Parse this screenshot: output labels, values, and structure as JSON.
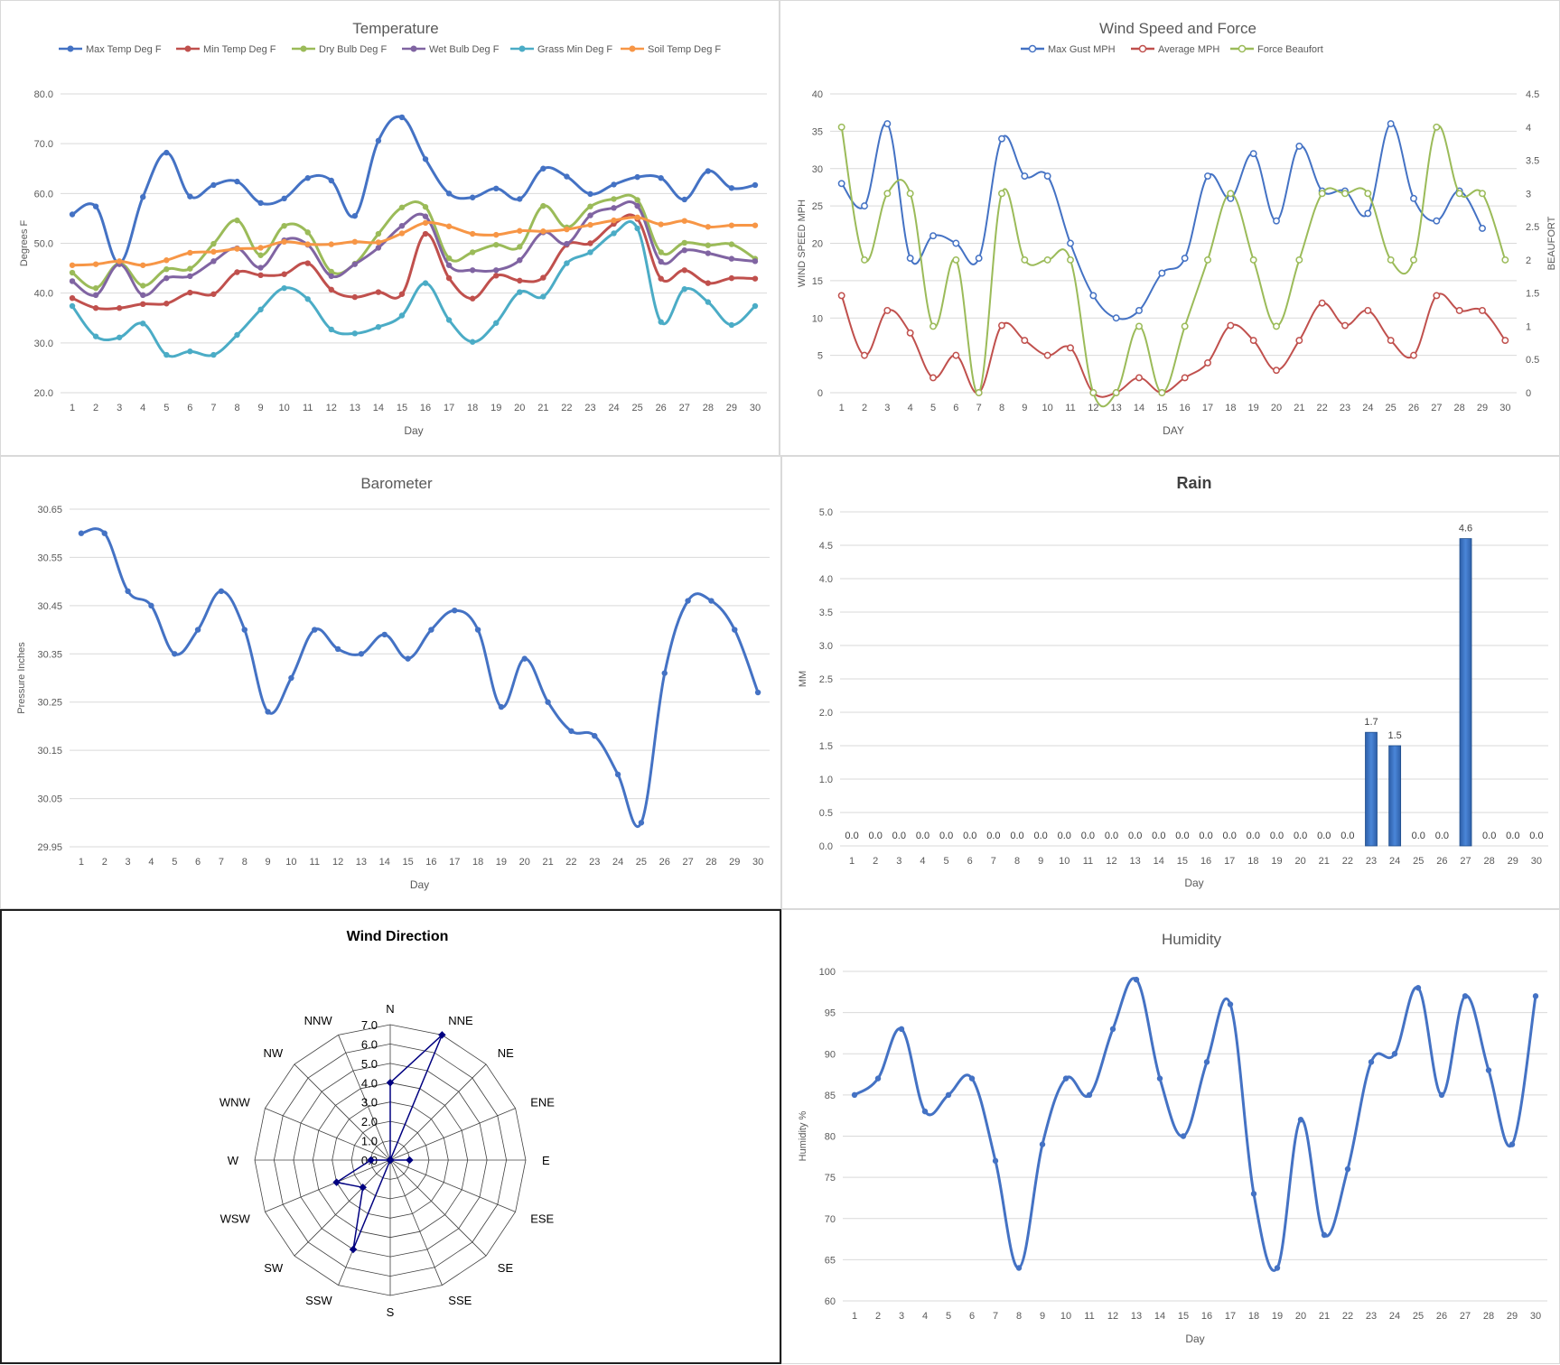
{
  "chart_data": [
    {
      "id": "temperature",
      "type": "line",
      "title": "Temperature",
      "xlabel": "Day",
      "ylabel": "Degrees F",
      "ylim": [
        20,
        80
      ],
      "yticks": [
        "20.0",
        "30.0",
        "40.0",
        "50.0",
        "60.0",
        "70.0",
        "80.0"
      ],
      "x": [
        1,
        2,
        3,
        4,
        5,
        6,
        7,
        8,
        9,
        10,
        11,
        12,
        13,
        14,
        15,
        16,
        17,
        18,
        19,
        20,
        21,
        22,
        23,
        24,
        25,
        26,
        27,
        28,
        29,
        30
      ],
      "legend_position": "top",
      "grid": true,
      "series": [
        {
          "name": "Max Temp Deg F",
          "color": "#4472c4",
          "values": [
            55.8,
            57.4,
            46.0,
            59.3,
            68.2,
            59.4,
            61.7,
            62.4,
            58.1,
            59.0,
            63.1,
            62.6,
            55.5,
            70.6,
            75.3,
            66.9,
            60.0,
            59.2,
            61.0,
            58.9,
            65.0,
            63.4,
            59.9,
            61.8,
            63.3,
            63.1,
            58.8,
            64.5,
            61.1,
            61.7
          ]
        },
        {
          "name": "Min Temp Deg F",
          "color": "#c0504d",
          "values": [
            39.0,
            37.0,
            37.0,
            37.8,
            37.9,
            40.1,
            39.8,
            44.2,
            43.6,
            43.8,
            46.0,
            40.7,
            39.2,
            40.2,
            39.8,
            51.9,
            43.0,
            38.9,
            43.5,
            42.5,
            43.1,
            49.7,
            50.0,
            53.9,
            54.9,
            42.9,
            44.6,
            42.0,
            43.0,
            42.9
          ]
        },
        {
          "name": "Dry Bulb Deg F",
          "color": "#9bbb59",
          "values": [
            44.1,
            41.0,
            46.0,
            41.5,
            44.8,
            44.9,
            49.9,
            54.6,
            47.6,
            53.5,
            52.2,
            44.3,
            45.9,
            51.9,
            57.2,
            57.3,
            47.0,
            48.2,
            49.7,
            49.3,
            57.5,
            53.2,
            57.4,
            58.9,
            58.7,
            48.2,
            50.1,
            49.6,
            49.8,
            46.9
          ]
        },
        {
          "name": "Wet Bulb Deg F",
          "color": "#8064a2",
          "values": [
            42.4,
            39.6,
            45.8,
            39.6,
            43.0,
            43.4,
            46.4,
            49.0,
            45.1,
            50.6,
            49.7,
            43.4,
            45.8,
            49.1,
            53.5,
            55.4,
            45.6,
            44.6,
            44.6,
            46.6,
            52.2,
            49.9,
            55.6,
            57.1,
            57.5,
            46.3,
            48.6,
            48.0,
            46.9,
            46.4
          ]
        },
        {
          "name": "Grass Min Deg F",
          "color": "#4bacc6",
          "values": [
            37.4,
            31.3,
            31.1,
            33.9,
            27.6,
            28.3,
            27.6,
            31.6,
            36.7,
            41.0,
            38.8,
            32.7,
            31.9,
            33.2,
            35.5,
            42.0,
            34.6,
            30.2,
            34.0,
            40.2,
            39.3,
            46.0,
            48.2,
            52.0,
            53.0,
            34.2,
            40.8,
            38.2,
            33.6,
            37.4
          ]
        },
        {
          "name": "Soil Temp Deg F",
          "color": "#f79646",
          "values": [
            45.6,
            45.8,
            46.4,
            45.6,
            46.6,
            48.1,
            48.3,
            48.9,
            49.1,
            50.3,
            49.8,
            49.8,
            50.3,
            50.2,
            52.0,
            54.1,
            53.4,
            51.9,
            51.7,
            52.5,
            52.4,
            52.8,
            53.7,
            54.6,
            55.2,
            53.8,
            54.5,
            53.3,
            53.6,
            53.6
          ]
        }
      ]
    },
    {
      "id": "wind",
      "type": "line",
      "title": "Wind Speed and Force",
      "xlabel": "DAY",
      "ylabel": "WIND SPEED MPH",
      "y2label": "BEAUFORT",
      "ylim": [
        0,
        40
      ],
      "y2lim": [
        0,
        4.5
      ],
      "yticks": [
        "0",
        "5",
        "10",
        "15",
        "20",
        "25",
        "30",
        "35",
        "40"
      ],
      "y2ticks": [
        "0",
        "0.5",
        "1",
        "1.5",
        "2",
        "2.5",
        "3",
        "3.5",
        "4",
        "4.5"
      ],
      "x": [
        1,
        2,
        3,
        4,
        5,
        6,
        7,
        8,
        9,
        10,
        11,
        12,
        13,
        14,
        15,
        16,
        17,
        18,
        19,
        20,
        21,
        22,
        23,
        24,
        25,
        26,
        27,
        28,
        29,
        30
      ],
      "legend_position": "top",
      "grid": true,
      "series": [
        {
          "name": "Max Gust MPH",
          "color": "#4472c4",
          "axis": "left",
          "values": [
            28,
            25,
            36,
            18,
            21,
            20,
            18,
            34,
            29,
            29,
            20,
            13,
            10,
            11,
            16,
            18,
            29,
            26,
            32,
            23,
            33,
            27,
            27,
            24,
            36,
            26,
            23,
            27,
            22,
            null
          ]
        },
        {
          "name": "Average MPH",
          "color": "#c0504d",
          "axis": "left",
          "values": [
            13,
            5,
            11,
            8,
            2,
            5,
            0,
            9,
            7,
            5,
            6,
            0,
            0,
            2,
            0,
            2,
            4,
            9,
            7,
            3,
            7,
            12,
            9,
            11,
            7,
            5,
            13,
            11,
            11,
            7
          ]
        },
        {
          "name": "Force Beaufort",
          "color": "#9bbb59",
          "axis": "right",
          "values": [
            4,
            2,
            3,
            3,
            1,
            2,
            0,
            3,
            2,
            2,
            2,
            0,
            0,
            1,
            0,
            1,
            2,
            3,
            2,
            1,
            2,
            3,
            3,
            3,
            2,
            2,
            4,
            3,
            3,
            2
          ]
        }
      ]
    },
    {
      "id": "barometer",
      "type": "line",
      "title": "Barometer",
      "xlabel": "Day",
      "ylabel": "Pressure Inches",
      "ylim": [
        29.95,
        30.65
      ],
      "yticks": [
        "29.95",
        "30.05",
        "30.15",
        "30.25",
        "30.35",
        "30.45",
        "30.55",
        "30.65"
      ],
      "x": [
        1,
        2,
        3,
        4,
        5,
        6,
        7,
        8,
        9,
        10,
        11,
        12,
        13,
        14,
        15,
        16,
        17,
        18,
        19,
        20,
        21,
        22,
        23,
        24,
        25,
        26,
        27,
        28,
        29,
        30
      ],
      "grid": true,
      "series": [
        {
          "name": "",
          "color": "#4472c4",
          "values": [
            30.6,
            30.6,
            30.48,
            30.45,
            30.35,
            30.4,
            30.48,
            30.4,
            30.23,
            30.3,
            30.4,
            30.36,
            30.35,
            30.39,
            30.34,
            30.4,
            30.44,
            30.4,
            30.24,
            30.34,
            30.25,
            30.19,
            30.18,
            30.1,
            30.0,
            30.31,
            30.46,
            30.46,
            30.4,
            30.27
          ]
        }
      ]
    },
    {
      "id": "rain",
      "type": "bar",
      "title": "Rain",
      "xlabel": "Day",
      "ylabel": "MM",
      "ylim": [
        0,
        5
      ],
      "yticks": [
        "0.0",
        "0.5",
        "1.0",
        "1.5",
        "2.0",
        "2.5",
        "3.0",
        "3.5",
        "4.0",
        "4.5",
        "5.0"
      ],
      "categories": [
        "1",
        "2",
        "3",
        "4",
        "5",
        "6",
        "7",
        "8",
        "9",
        "10",
        "11",
        "12",
        "13",
        "14",
        "15",
        "16",
        "17",
        "18",
        "19",
        "20",
        "21",
        "22",
        "23",
        "24",
        "25",
        "26",
        "27",
        "28",
        "29",
        "30"
      ],
      "values": [
        0,
        0,
        0,
        0,
        0,
        0,
        0,
        0,
        0,
        0,
        0,
        0,
        0,
        0,
        0,
        0,
        0,
        0,
        0,
        0,
        0,
        0,
        1.7,
        1.5,
        0,
        0,
        4.6,
        0,
        0,
        0
      ],
      "data_labels": [
        "0.0",
        "0.0",
        "0.0",
        "0.0",
        "0.0",
        "0.0",
        "0.0",
        "0.0",
        "0.0",
        "0.0",
        "0.0",
        "0.0",
        "0.0",
        "0.0",
        "0.0",
        "0.0",
        "0.0",
        "0.0",
        "0.0",
        "0.0",
        "0.0",
        "0.0",
        "1.7",
        "1.5",
        "0.0",
        "0.0",
        "4.6",
        "0.0",
        "0.0",
        "0.0"
      ],
      "color": "#4a86d8",
      "grid": true
    },
    {
      "id": "wind-direction",
      "type": "radar",
      "title": "Wind Direction",
      "rlim": [
        0,
        7
      ],
      "rticks": [
        "0.0",
        "1.0",
        "2.0",
        "3.0",
        "4.0",
        "5.0",
        "6.0",
        "7.0"
      ],
      "categories": [
        "N",
        "NNE",
        "NE",
        "ENE",
        "E",
        "ESE",
        "SE",
        "SSE",
        "S",
        "SSW",
        "SW",
        "WSW",
        "W",
        "WNW",
        "NW",
        "NNW"
      ],
      "values": [
        4,
        7,
        0,
        0,
        1,
        0,
        0,
        0,
        0,
        5,
        2,
        3,
        1,
        0,
        0,
        0
      ],
      "color": "#000080"
    },
    {
      "id": "humidity",
      "type": "line",
      "title": "Humidity",
      "xlabel": "Day",
      "ylabel": "Humidity %",
      "ylim": [
        60,
        100
      ],
      "yticks": [
        "60",
        "65",
        "70",
        "75",
        "80",
        "85",
        "90",
        "95",
        "100"
      ],
      "x": [
        1,
        2,
        3,
        4,
        5,
        6,
        7,
        8,
        9,
        10,
        11,
        12,
        13,
        14,
        15,
        16,
        17,
        18,
        19,
        20,
        21,
        22,
        23,
        24,
        25,
        26,
        27,
        28,
        29,
        30
      ],
      "grid": true,
      "series": [
        {
          "name": "",
          "color": "#4472c4",
          "values": [
            85,
            87,
            93,
            83,
            85,
            87,
            77,
            64,
            79,
            87,
            85,
            93,
            99,
            87,
            80,
            89,
            96,
            73,
            64,
            82,
            68,
            76,
            89,
            90,
            98,
            85,
            97,
            88,
            79,
            97
          ]
        }
      ]
    }
  ]
}
